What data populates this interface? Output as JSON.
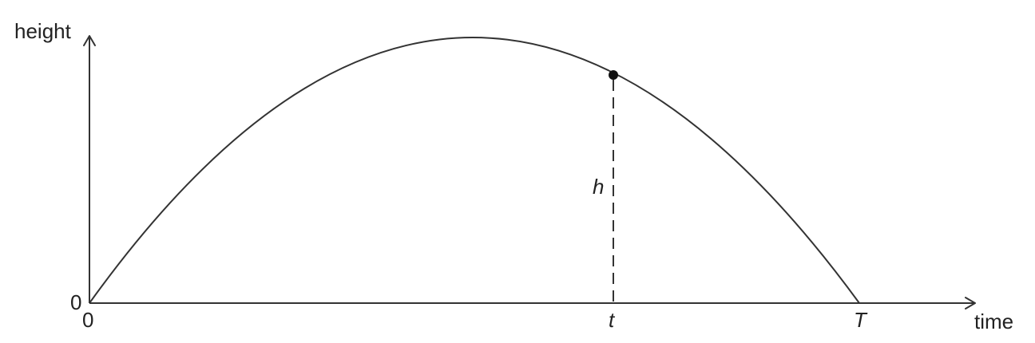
{
  "axes": {
    "y_label": "height",
    "x_label": "time",
    "y_origin_label": "0",
    "x_origin_label": "0"
  },
  "markers": {
    "t_label": "t",
    "T_label": "T",
    "h_label": "h"
  },
  "colors": {
    "line": "#333333",
    "text": "#222222"
  }
}
